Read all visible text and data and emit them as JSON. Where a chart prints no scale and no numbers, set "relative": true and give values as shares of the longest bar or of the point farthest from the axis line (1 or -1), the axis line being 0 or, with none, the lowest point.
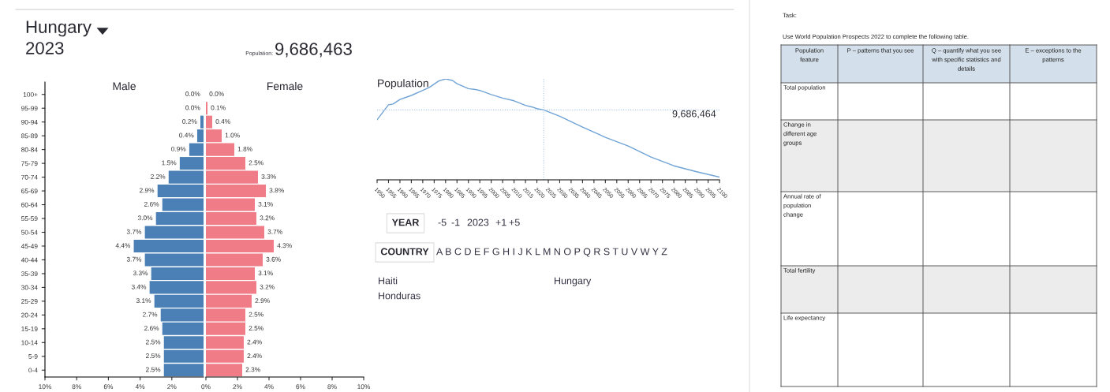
{
  "chart_data": [
    {
      "type": "other",
      "title": "Hungary",
      "subtitle": "2023",
      "annotations": [
        "Population:",
        "9,686,463"
      ]
    },
    {
      "type": "bar",
      "orientation": "horizontal",
      "title": "Male",
      "categories": [
        "100+",
        "95-99",
        "90-94",
        "85-89",
        "80-84",
        "75-79",
        "70-74",
        "65-69",
        "60-64",
        "55-59",
        "50-54",
        "45-49",
        "40-44",
        "35-39",
        "30-34",
        "25-29",
        "20-24",
        "15-19",
        "10-14",
        "5-9",
        "0-4"
      ],
      "series": [
        {
          "color": "#4a80b6",
          "values": [
            0.0,
            0.0,
            0.2,
            0.4,
            0.9,
            1.5,
            2.2,
            2.9,
            2.6,
            3.0,
            3.7,
            4.4,
            3.7,
            3.3,
            3.4,
            3.1,
            2.7,
            2.6,
            2.5,
            2.5,
            2.5
          ],
          "value_labels": [
            "0.0%",
            "0.0%",
            "0.2%",
            "0.4%",
            "0.9%",
            "1.5%",
            "2.2%",
            "2.9%",
            "2.6%",
            "3.0%",
            "3.7%",
            "4.4%",
            "3.7%",
            "3.3%",
            "3.4%",
            "3.1%",
            "2.7%",
            "2.6%",
            "2.5%",
            "2.5%",
            "2.5%"
          ]
        }
      ],
      "xlim": [
        10,
        0
      ],
      "xticks": [
        {
          "value": 10,
          "label": "10%"
        },
        {
          "value": 8,
          "label": "8%"
        },
        {
          "value": 6,
          "label": "6%"
        },
        {
          "value": 4,
          "label": "4%"
        },
        {
          "value": 2,
          "label": "2%"
        }
      ]
    },
    {
      "type": "bar",
      "orientation": "horizontal",
      "title": "Female",
      "tick_labels": "x",
      "series": [
        {
          "color": "#f07c88",
          "values": [
            0.0,
            0.1,
            0.4,
            1.0,
            1.8,
            2.5,
            3.3,
            3.8,
            3.1,
            3.2,
            3.7,
            4.3,
            3.6,
            3.1,
            3.2,
            2.9,
            2.5,
            2.5,
            2.4,
            2.4,
            2.3
          ],
          "value_labels": [
            "0.0%",
            "0.1%",
            "0.4%",
            "1.0%",
            "1.8%",
            "2.5%",
            "3.3%",
            "3.8%",
            "3.1%",
            "3.2%",
            "3.7%",
            "4.3%",
            "3.6%",
            "3.1%",
            "3.2%",
            "2.9%",
            "2.5%",
            "2.5%",
            "2.4%",
            "2.4%",
            "2.3%"
          ]
        }
      ],
      "xlim": [
        0,
        10
      ],
      "xticks": [
        {
          "value": 0,
          "label": "0%"
        },
        {
          "value": 2,
          "label": "2%"
        },
        {
          "value": 4,
          "label": "4%"
        },
        {
          "value": 6,
          "label": "6%"
        },
        {
          "value": 8,
          "label": "8%"
        },
        {
          "value": 10,
          "label": "10%"
        }
      ]
    },
    {
      "type": "line",
      "title": "Population",
      "relative": true,
      "annotations": [
        "9,686,464"
      ],
      "series": [
        {
          "color": "#6fa3d6",
          "x": [
            1950,
            1953,
            1955,
            1957,
            1960,
            1965,
            1970,
            1973,
            1977,
            1980,
            1983,
            1985,
            1990,
            1993,
            1995,
            2000,
            2005,
            2010,
            2015,
            2018,
            2020,
            2023,
            2030,
            2040,
            2050,
            2060,
            2070,
            2080,
            2090,
            2100
          ],
          "values": [
            0.595,
            0.684,
            0.743,
            0.751,
            0.796,
            0.836,
            0.885,
            0.917,
            0.979,
            1.0,
            0.984,
            0.952,
            0.903,
            0.895,
            0.885,
            0.845,
            0.81,
            0.783,
            0.737,
            0.721,
            0.705,
            0.692,
            0.63,
            0.523,
            0.421,
            0.335,
            0.225,
            0.139,
            0.08,
            0.027
          ]
        }
      ],
      "xlim": [
        1950,
        2100
      ],
      "xticks": [
        1950,
        1955,
        1960,
        1965,
        1970,
        1975,
        1980,
        1985,
        1990,
        1995,
        2000,
        2005,
        2010,
        2015,
        2020,
        2025,
        2030,
        2035,
        2040,
        2045,
        2050,
        2055,
        2060,
        2065,
        2070,
        2075,
        2080,
        2085,
        2090,
        2095,
        2100
      ],
      "ref_lines": [
        {
          "axis": "x",
          "value": 2023,
          "color": "#a9c6e4",
          "line_style": "dotted"
        },
        {
          "axis": "y",
          "value": 0.692,
          "color": "#a9c6e4",
          "line_style": "dotted"
        }
      ]
    },
    {
      "type": "other",
      "annotations": [
        "YEAR",
        "-5",
        "-1",
        "2023",
        "+1",
        "+5",
        "COUNTRY",
        "A B C D E F G H I J K L M N O P Q R S T U V W Y Z",
        "Haiti",
        "Hungary",
        "Honduras"
      ]
    },
    {
      "type": "other",
      "title": "Task:",
      "subtitle": "Use World Population Prospects 2022 to complete the following table.",
      "categories": [
        "Population feature",
        "P – patterns that you see",
        "Q – quantify what you see with specific statistics and details",
        "E – exceptions to the patterns"
      ],
      "y_categories": [
        "Total population",
        "Change in different age groups",
        "Annual rate of population change",
        "Total fertility",
        "Life expectancy"
      ]
    }
  ]
}
